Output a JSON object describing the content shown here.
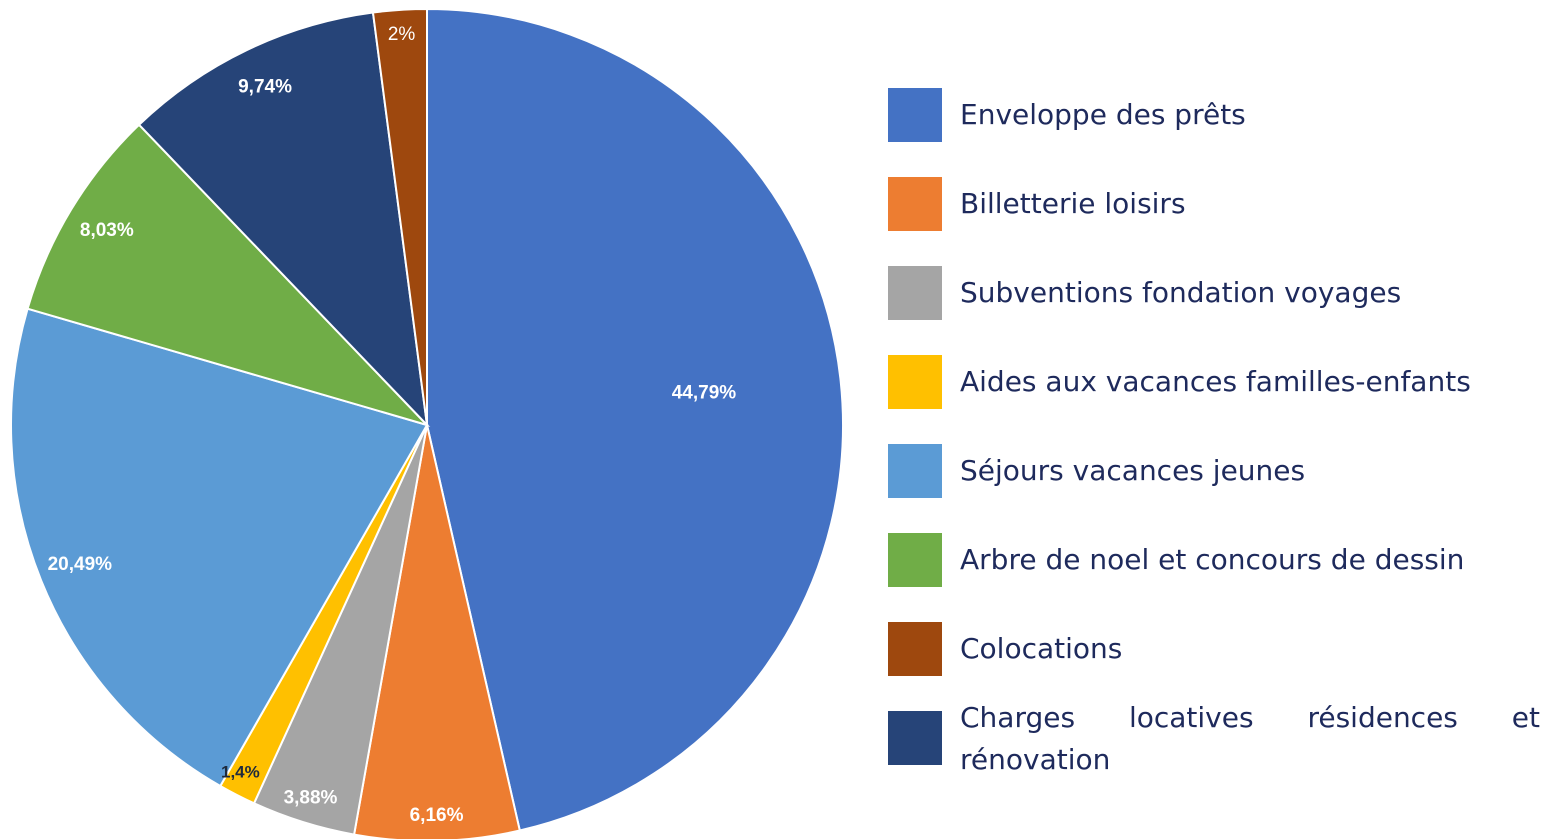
{
  "chart_data": {
    "type": "pie",
    "categories": [
      "Enveloppe des prêts",
      "Billetterie loisirs",
      "Subventions fondation voyages",
      "Aides aux vacances familles-enfants",
      "Séjours vacances jeunes",
      "Arbre de noel et concours de dessin",
      "Colocations",
      "Charges locatives résidences et rénovation"
    ],
    "values": [
      44.79,
      6.16,
      3.88,
      1.4,
      20.49,
      8.03,
      2,
      9.74
    ],
    "value_labels": [
      "44,79%",
      "6,16%",
      "3,88%",
      "1,4%",
      "20,49%",
      "8,03%",
      "2%",
      "9,74%"
    ],
    "colors": [
      "#4472c4",
      "#ed7d31",
      "#a5a5a5",
      "#ffc000",
      "#5b9bd5",
      "#70ad47",
      "#9e480e",
      "#264478"
    ],
    "legend": "right"
  }
}
